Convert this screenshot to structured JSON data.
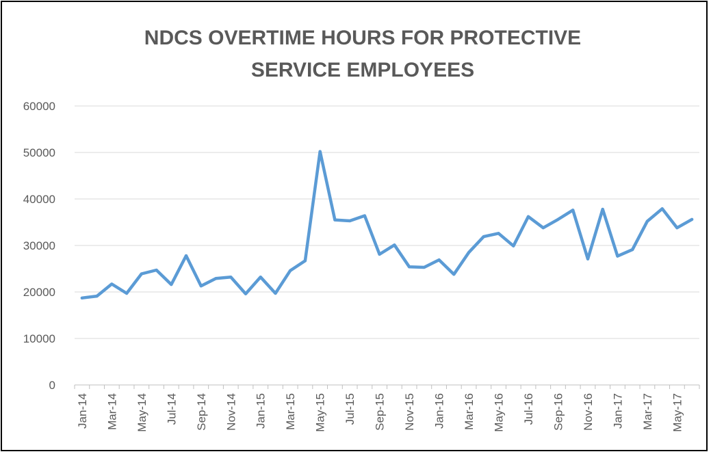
{
  "chart_data": {
    "type": "line",
    "title_lines": [
      "NDCS OVERTIME HOURS FOR PROTECTIVE",
      "SERVICE EMPLOYEES"
    ],
    "xlabel": "",
    "ylabel": "",
    "ylim": [
      0,
      60000
    ],
    "yticks": [
      "0",
      "10000",
      "20000",
      "30000",
      "40000",
      "50000",
      "60000"
    ],
    "grid": true,
    "legend": "none",
    "line_color": "#5B9BD5",
    "x": [
      "Jan-14",
      "Feb-14",
      "Mar-14",
      "Apr-14",
      "May-14",
      "Jun-14",
      "Jul-14",
      "Aug-14",
      "Sep-14",
      "Oct-14",
      "Nov-14",
      "Dec-14",
      "Jan-15",
      "Feb-15",
      "Mar-15",
      "Apr-15",
      "May-15",
      "Jun-15",
      "Jul-15",
      "Aug-15",
      "Sep-15",
      "Oct-15",
      "Nov-15",
      "Dec-15",
      "Jan-16",
      "Feb-16",
      "Mar-16",
      "Apr-16",
      "May-16",
      "Jun-16",
      "Jul-16",
      "Aug-16",
      "Sep-16",
      "Oct-16",
      "Nov-16",
      "Dec-16",
      "Jan-17",
      "Feb-17",
      "Mar-17",
      "Apr-17",
      "May-17",
      "Jun-17"
    ],
    "x_tick_labels": [
      "Jan-14",
      "Mar-14",
      "May-14",
      "Jul-14",
      "Sep-14",
      "Nov-14",
      "Jan-15",
      "Mar-15",
      "May-15",
      "Jul-15",
      "Sep-15",
      "Nov-15",
      "Jan-16",
      "Mar-16",
      "May-16",
      "Jul-16",
      "Sep-16",
      "Nov-16",
      "Jan-17",
      "Mar-17",
      "May-17"
    ],
    "series": [
      {
        "values": [
          18700,
          19100,
          21700,
          19700,
          23900,
          24700,
          21600,
          27800,
          21300,
          22900,
          23200,
          19600,
          23200,
          19700,
          24600,
          26700,
          50200,
          35500,
          35300,
          36400,
          28100,
          30100,
          25400,
          25300,
          26900,
          23800,
          28500,
          31900,
          32600,
          29900,
          36200,
          33800,
          35600,
          37600,
          27100,
          37800,
          27700,
          29100,
          35200,
          37900,
          33800,
          35600
        ]
      }
    ]
  }
}
